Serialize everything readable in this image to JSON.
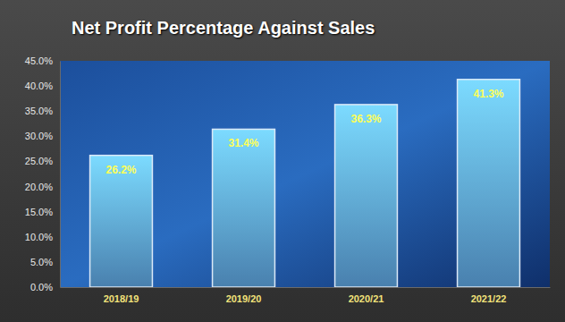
{
  "chart_data": {
    "type": "bar",
    "title": "Net Profit Percentage Against Sales",
    "categories": [
      "2018/19",
      "2019/20",
      "2020/21",
      "2021/22"
    ],
    "values": [
      26.2,
      31.4,
      36.3,
      41.3
    ],
    "value_labels": [
      "26.2%",
      "31.4%",
      "36.3%",
      "41.3%"
    ],
    "color": "#5a9fd8",
    "ylim": [
      0,
      45
    ],
    "yticks": [
      {
        "value": 0,
        "label": "0.0%"
      },
      {
        "value": 5,
        "label": "5.0%"
      },
      {
        "value": 10,
        "label": "10.0%"
      },
      {
        "value": 15,
        "label": "15.0%"
      },
      {
        "value": 20,
        "label": "20.0%"
      },
      {
        "value": 25,
        "label": "25.0%"
      },
      {
        "value": 30,
        "label": "30.0%"
      },
      {
        "value": 35,
        "label": "35.0%"
      },
      {
        "value": 40,
        "label": "40.0%"
      },
      {
        "value": 45,
        "label": "45.0%"
      }
    ],
    "data_labels": true,
    "grid": false
  }
}
